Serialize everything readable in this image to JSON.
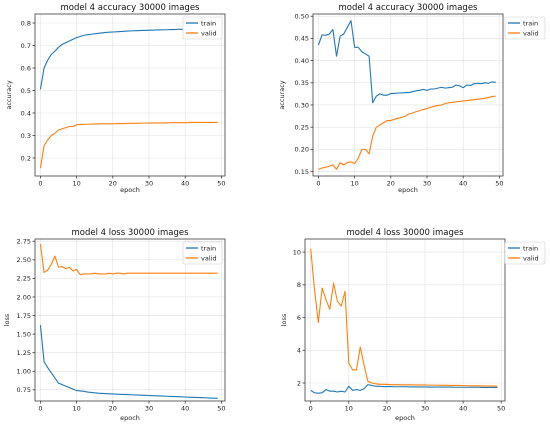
{
  "colors": {
    "train": "#1f77b4",
    "valid": "#ff7f0e"
  },
  "chart_data": [
    {
      "type": "line",
      "title": "model 4 accuracy 30000 images",
      "xlabel": "epoch",
      "ylabel": "accuracy",
      "xlim": [
        -1.5,
        51
      ],
      "ylim": [
        0.12,
        0.84
      ],
      "xticks": [
        0,
        10,
        20,
        30,
        40,
        50
      ],
      "yticks": [
        0.2,
        0.3,
        0.4,
        0.5,
        0.6,
        0.7,
        0.8
      ],
      "ytick_decimals": 1,
      "grid": true,
      "legend": "top-right",
      "series": [
        {
          "name": "train",
          "values": [
            0.505,
            0.6,
            0.635,
            0.66,
            0.675,
            0.692,
            0.705,
            0.712,
            0.72,
            0.728,
            0.735,
            0.74,
            0.745,
            0.748,
            0.75,
            0.752,
            0.754,
            0.756,
            0.758,
            0.759,
            0.76,
            0.761,
            0.762,
            0.763,
            0.764,
            0.765,
            0.766,
            0.766,
            0.767,
            0.767,
            0.768,
            0.768,
            0.769,
            0.769,
            0.77,
            0.77,
            0.771,
            0.771,
            0.772,
            0.772,
            0.773,
            0.773,
            0.774,
            0.774,
            0.775,
            0.775,
            0.776,
            0.776,
            0.777,
            0.777
          ]
        },
        {
          "name": "valid",
          "values": [
            0.155,
            0.255,
            0.28,
            0.3,
            0.31,
            0.325,
            0.33,
            0.335,
            0.34,
            0.34,
            0.348,
            0.349,
            0.35,
            0.35,
            0.351,
            0.351,
            0.351,
            0.352,
            0.352,
            0.352,
            0.352,
            0.353,
            0.353,
            0.353,
            0.354,
            0.354,
            0.354,
            0.354,
            0.355,
            0.355,
            0.355,
            0.356,
            0.356,
            0.356,
            0.356,
            0.356,
            0.357,
            0.357,
            0.357,
            0.357,
            0.357,
            0.358,
            0.358,
            0.358,
            0.358,
            0.358,
            0.358,
            0.358,
            0.358,
            0.358
          ]
        }
      ]
    },
    {
      "type": "line",
      "title": "model 4 accuracy 30000 images",
      "xlabel": "epoch",
      "ylabel": "accuracy",
      "xlim": [
        -1.5,
        51
      ],
      "ylim": [
        0.14,
        0.505
      ],
      "xticks": [
        0,
        10,
        20,
        30,
        40,
        50
      ],
      "yticks": [
        0.15,
        0.2,
        0.25,
        0.3,
        0.35,
        0.4,
        0.45,
        0.5
      ],
      "ytick_decimals": 2,
      "grid": true,
      "legend": "top-right",
      "series": [
        {
          "name": "train",
          "values": [
            0.435,
            0.458,
            0.457,
            0.46,
            0.47,
            0.41,
            0.455,
            0.46,
            0.475,
            0.49,
            0.43,
            0.43,
            0.42,
            0.415,
            0.41,
            0.305,
            0.32,
            0.325,
            0.322,
            0.322,
            0.326,
            0.326,
            0.327,
            0.327,
            0.328,
            0.328,
            0.33,
            0.332,
            0.333,
            0.335,
            0.333,
            0.336,
            0.336,
            0.338,
            0.34,
            0.338,
            0.339,
            0.34,
            0.345,
            0.343,
            0.339,
            0.345,
            0.344,
            0.348,
            0.349,
            0.348,
            0.35,
            0.349,
            0.352,
            0.351
          ]
        },
        {
          "name": "valid",
          "values": [
            0.155,
            0.158,
            0.16,
            0.162,
            0.165,
            0.155,
            0.17,
            0.165,
            0.17,
            0.172,
            0.168,
            0.18,
            0.2,
            0.2,
            0.19,
            0.23,
            0.25,
            0.255,
            0.26,
            0.265,
            0.265,
            0.268,
            0.27,
            0.272,
            0.275,
            0.28,
            0.282,
            0.285,
            0.287,
            0.29,
            0.292,
            0.295,
            0.297,
            0.299,
            0.3,
            0.303,
            0.305,
            0.306,
            0.307,
            0.308,
            0.309,
            0.31,
            0.311,
            0.312,
            0.313,
            0.314,
            0.315,
            0.317,
            0.319,
            0.32
          ]
        }
      ]
    },
    {
      "type": "line",
      "title": "model 4 loss 30000 images",
      "xlabel": "epoch",
      "ylabel": "loss",
      "xlim": [
        -1.5,
        51
      ],
      "ylim": [
        0.6,
        2.78
      ],
      "xticks": [
        0,
        10,
        20,
        30,
        40,
        50
      ],
      "yticks": [
        0.75,
        1.0,
        1.25,
        1.5,
        1.75,
        2.0,
        2.25,
        2.5,
        2.75
      ],
      "ytick_decimals": 2,
      "grid": true,
      "legend": "top-right",
      "series": [
        {
          "name": "train",
          "values": [
            1.62,
            1.13,
            1.05,
            0.98,
            0.91,
            0.84,
            0.82,
            0.8,
            0.78,
            0.76,
            0.74,
            0.735,
            0.73,
            0.72,
            0.715,
            0.71,
            0.705,
            0.702,
            0.7,
            0.697,
            0.695,
            0.692,
            0.69,
            0.688,
            0.686,
            0.684,
            0.682,
            0.68,
            0.678,
            0.676,
            0.674,
            0.672,
            0.67,
            0.668,
            0.666,
            0.664,
            0.662,
            0.66,
            0.658,
            0.656,
            0.654,
            0.652,
            0.65,
            0.648,
            0.646,
            0.644,
            0.642,
            0.64,
            0.638,
            0.636
          ]
        },
        {
          "name": "valid",
          "values": [
            2.71,
            2.33,
            2.36,
            2.44,
            2.55,
            2.4,
            2.41,
            2.38,
            2.4,
            2.35,
            2.37,
            2.3,
            2.31,
            2.31,
            2.31,
            2.32,
            2.31,
            2.31,
            2.31,
            2.32,
            2.31,
            2.32,
            2.32,
            2.31,
            2.32,
            2.32,
            2.32,
            2.32,
            2.32,
            2.32,
            2.32,
            2.32,
            2.32,
            2.32,
            2.32,
            2.32,
            2.32,
            2.32,
            2.32,
            2.32,
            2.32,
            2.32,
            2.32,
            2.32,
            2.32,
            2.32,
            2.32,
            2.32,
            2.32,
            2.32
          ]
        }
      ]
    },
    {
      "type": "line",
      "title": "model 4 loss 30000 images",
      "xlabel": "epoch",
      "ylabel": "loss",
      "xlim": [
        -1.5,
        51
      ],
      "ylim": [
        0.9,
        10.8
      ],
      "xticks": [
        0,
        10,
        20,
        30,
        40,
        50
      ],
      "yticks": [
        2,
        4,
        6,
        8,
        10
      ],
      "ytick_decimals": 0,
      "grid": true,
      "legend": "top-right",
      "series": [
        {
          "name": "train",
          "values": [
            1.55,
            1.4,
            1.38,
            1.4,
            1.6,
            1.5,
            1.5,
            1.45,
            1.5,
            1.45,
            1.8,
            1.55,
            1.6,
            1.55,
            1.65,
            1.9,
            1.85,
            1.8,
            1.8,
            1.78,
            1.78,
            1.78,
            1.77,
            1.77,
            1.77,
            1.77,
            1.76,
            1.76,
            1.76,
            1.76,
            1.76,
            1.75,
            1.75,
            1.75,
            1.75,
            1.75,
            1.75,
            1.75,
            1.74,
            1.74,
            1.74,
            1.74,
            1.74,
            1.74,
            1.74,
            1.73,
            1.73,
            1.73,
            1.73,
            1.73
          ]
        },
        {
          "name": "valid",
          "values": [
            10.2,
            7.7,
            5.7,
            7.8,
            7.1,
            6.5,
            8.1,
            7.0,
            6.7,
            7.6,
            3.2,
            2.8,
            2.8,
            4.2,
            3.1,
            2.1,
            2.0,
            1.95,
            1.92,
            1.92,
            1.91,
            1.9,
            1.9,
            1.9,
            1.89,
            1.89,
            1.89,
            1.88,
            1.88,
            1.88,
            1.88,
            1.87,
            1.87,
            1.87,
            1.86,
            1.86,
            1.86,
            1.85,
            1.85,
            1.85,
            1.84,
            1.84,
            1.83,
            1.83,
            1.83,
            1.82,
            1.82,
            1.81,
            1.81,
            1.8
          ]
        }
      ]
    }
  ]
}
